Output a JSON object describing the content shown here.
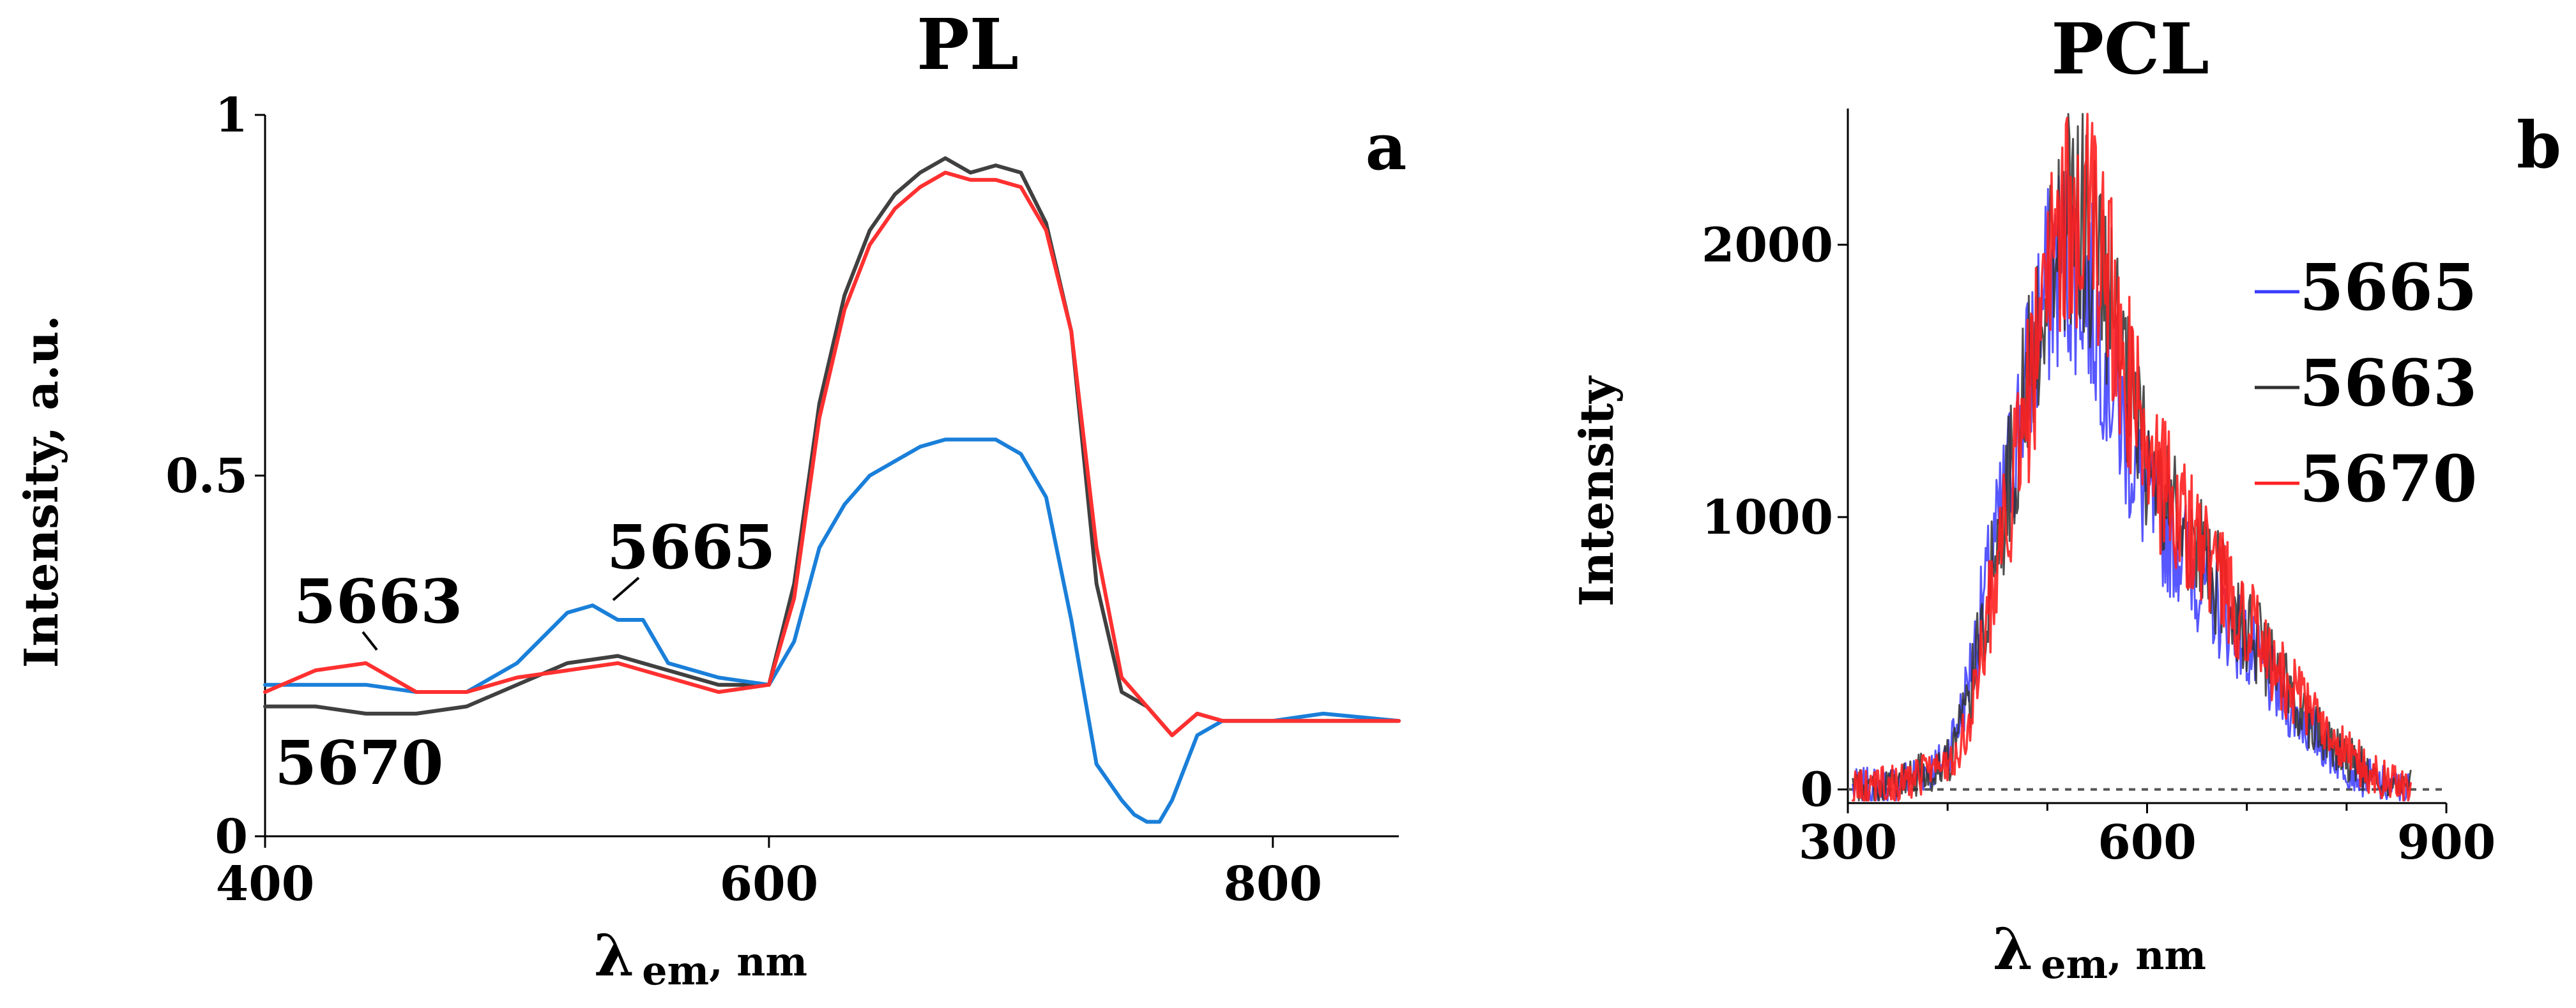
{
  "chart_data": [
    {
      "panel": "a",
      "type": "line",
      "title": "PL",
      "panel_label": "a",
      "xlabel_main": "λ",
      "xlabel_sub": "em",
      "xlabel_unit": ", nm",
      "ylabel": "Intensity, a.u.",
      "xlim": [
        400,
        850
      ],
      "ylim": [
        0,
        1
      ],
      "xticks": [
        {
          "v": 400,
          "label": "400"
        },
        {
          "v": 600,
          "label": "600"
        },
        {
          "v": 800,
          "label": "800"
        }
      ],
      "yticks": [
        {
          "v": 0,
          "label": "0"
        },
        {
          "v": 0.5,
          "label": "0.5"
        },
        {
          "v": 1,
          "label": "1"
        }
      ],
      "annotations": {
        "label_5663": "5663",
        "label_5665": "5665",
        "label_5670": "5670"
      },
      "series": [
        {
          "name": "5663",
          "color": "#404040",
          "x": [
            400,
            420,
            440,
            460,
            480,
            500,
            520,
            540,
            560,
            580,
            600,
            610,
            620,
            630,
            640,
            650,
            660,
            670,
            680,
            690,
            700,
            710,
            720,
            730,
            740,
            750,
            760,
            770,
            780,
            800,
            820,
            850
          ],
          "y": [
            0.18,
            0.18,
            0.17,
            0.17,
            0.18,
            0.21,
            0.24,
            0.25,
            0.23,
            0.21,
            0.21,
            0.35,
            0.6,
            0.75,
            0.84,
            0.89,
            0.92,
            0.94,
            0.92,
            0.93,
            0.92,
            0.85,
            0.7,
            0.35,
            0.2,
            0.18,
            0.14,
            0.17,
            0.16,
            0.16,
            0.16,
            0.16
          ]
        },
        {
          "name": "5665",
          "color": "#1a7fd9",
          "x": [
            400,
            420,
            440,
            460,
            480,
            500,
            520,
            530,
            540,
            550,
            560,
            580,
            600,
            610,
            620,
            630,
            640,
            650,
            660,
            670,
            680,
            690,
            700,
            710,
            720,
            730,
            740,
            745,
            750,
            755,
            760,
            770,
            780,
            800,
            820,
            850
          ],
          "y": [
            0.21,
            0.21,
            0.21,
            0.2,
            0.2,
            0.24,
            0.31,
            0.32,
            0.3,
            0.3,
            0.24,
            0.22,
            0.21,
            0.27,
            0.4,
            0.46,
            0.5,
            0.52,
            0.54,
            0.55,
            0.55,
            0.55,
            0.53,
            0.47,
            0.3,
            0.1,
            0.05,
            0.03,
            0.02,
            0.02,
            0.05,
            0.14,
            0.16,
            0.16,
            0.17,
            0.16
          ]
        },
        {
          "name": "5670",
          "color": "#ff3030",
          "x": [
            400,
            420,
            440,
            460,
            480,
            500,
            520,
            540,
            560,
            580,
            600,
            610,
            620,
            630,
            640,
            650,
            660,
            670,
            680,
            690,
            700,
            710,
            720,
            730,
            740,
            750,
            760,
            770,
            780,
            800,
            820,
            850
          ],
          "y": [
            0.2,
            0.23,
            0.24,
            0.2,
            0.2,
            0.22,
            0.23,
            0.24,
            0.22,
            0.2,
            0.21,
            0.33,
            0.58,
            0.73,
            0.82,
            0.87,
            0.9,
            0.92,
            0.91,
            0.91,
            0.9,
            0.84,
            0.7,
            0.4,
            0.22,
            0.18,
            0.14,
            0.17,
            0.16,
            0.16,
            0.16,
            0.16
          ]
        }
      ]
    },
    {
      "panel": "b",
      "type": "line",
      "title": "PCL",
      "panel_label": "b",
      "xlabel_main": "λ",
      "xlabel_sub": "em",
      "xlabel_unit": ", nm",
      "ylabel": "Intensity",
      "xlim": [
        300,
        900
      ],
      "ylim": [
        -50,
        2500
      ],
      "xticks": [
        {
          "v": 300,
          "label": "300"
        },
        {
          "v": 600,
          "label": "600"
        },
        {
          "v": 900,
          "label": "900"
        }
      ],
      "yticks": [
        {
          "v": 0,
          "label": "0"
        },
        {
          "v": 1000,
          "label": "1000"
        },
        {
          "v": 2000,
          "label": "2000"
        }
      ],
      "legend_position": "right",
      "baseline": 0,
      "series": [
        {
          "name": "5665",
          "color": "#3a3aff"
        },
        {
          "name": "5663",
          "color": "#303030"
        },
        {
          "name": "5670",
          "color": "#ff2020"
        }
      ],
      "envelope": {
        "x": [
          300,
          350,
          400,
          420,
          440,
          460,
          480,
          500,
          520,
          540,
          560,
          580,
          600,
          620,
          640,
          660,
          680,
          700,
          720,
          740,
          760,
          780,
          800,
          820,
          840,
          860
        ],
        "y": [
          0,
          20,
          100,
          300,
          700,
          1100,
          1500,
          1900,
          2100,
          2050,
          1800,
          1450,
          1200,
          1050,
          950,
          820,
          700,
          600,
          480,
          370,
          280,
          190,
          120,
          60,
          20,
          0
        ]
      }
    }
  ]
}
